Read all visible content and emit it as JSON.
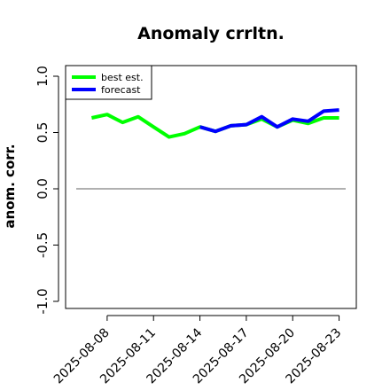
{
  "chart_data": {
    "type": "line",
    "title": "Anomaly crrltn.",
    "xlabel": "",
    "ylabel": "anom. corr.",
    "ylim": [
      -1.0,
      1.0
    ],
    "yticks": [
      -1.0,
      -0.5,
      0.0,
      0.5,
      1.0
    ],
    "ytick_labels": [
      "-1.0",
      "-0.5",
      "0.0",
      "0.5",
      "1.0"
    ],
    "xlim": [
      "2025-08-06",
      "2025-08-24"
    ],
    "xticks": [
      "2025-08-08",
      "2025-08-11",
      "2025-08-14",
      "2025-08-17",
      "2025-08-20",
      "2025-08-23"
    ],
    "highlighted_xtick": "2025-08-14",
    "highlight_color": "#228b22",
    "grid": false,
    "legend_position": "top-left",
    "reference_line": {
      "y": 0.0,
      "color": "#808080"
    },
    "series": [
      {
        "name": "best est.",
        "color": "#00ff00",
        "x": [
          "2025-08-07",
          "2025-08-08",
          "2025-08-09",
          "2025-08-10",
          "2025-08-11",
          "2025-08-12",
          "2025-08-13",
          "2025-08-14",
          "2025-08-15",
          "2025-08-16",
          "2025-08-17",
          "2025-08-18",
          "2025-08-19",
          "2025-08-20",
          "2025-08-21",
          "2025-08-22",
          "2025-08-23"
        ],
        "values": [
          0.63,
          0.66,
          0.59,
          0.64,
          0.55,
          0.46,
          0.49,
          0.55,
          0.51,
          0.56,
          0.57,
          0.62,
          0.55,
          0.61,
          0.58,
          0.63,
          0.63
        ]
      },
      {
        "name": "forecast",
        "color": "#0000ff",
        "x": [
          "2025-08-14",
          "2025-08-15",
          "2025-08-16",
          "2025-08-17",
          "2025-08-18",
          "2025-08-19",
          "2025-08-20",
          "2025-08-21",
          "2025-08-22",
          "2025-08-23"
        ],
        "values": [
          0.55,
          0.51,
          0.56,
          0.57,
          0.64,
          0.55,
          0.62,
          0.6,
          0.69,
          0.7
        ]
      }
    ]
  }
}
